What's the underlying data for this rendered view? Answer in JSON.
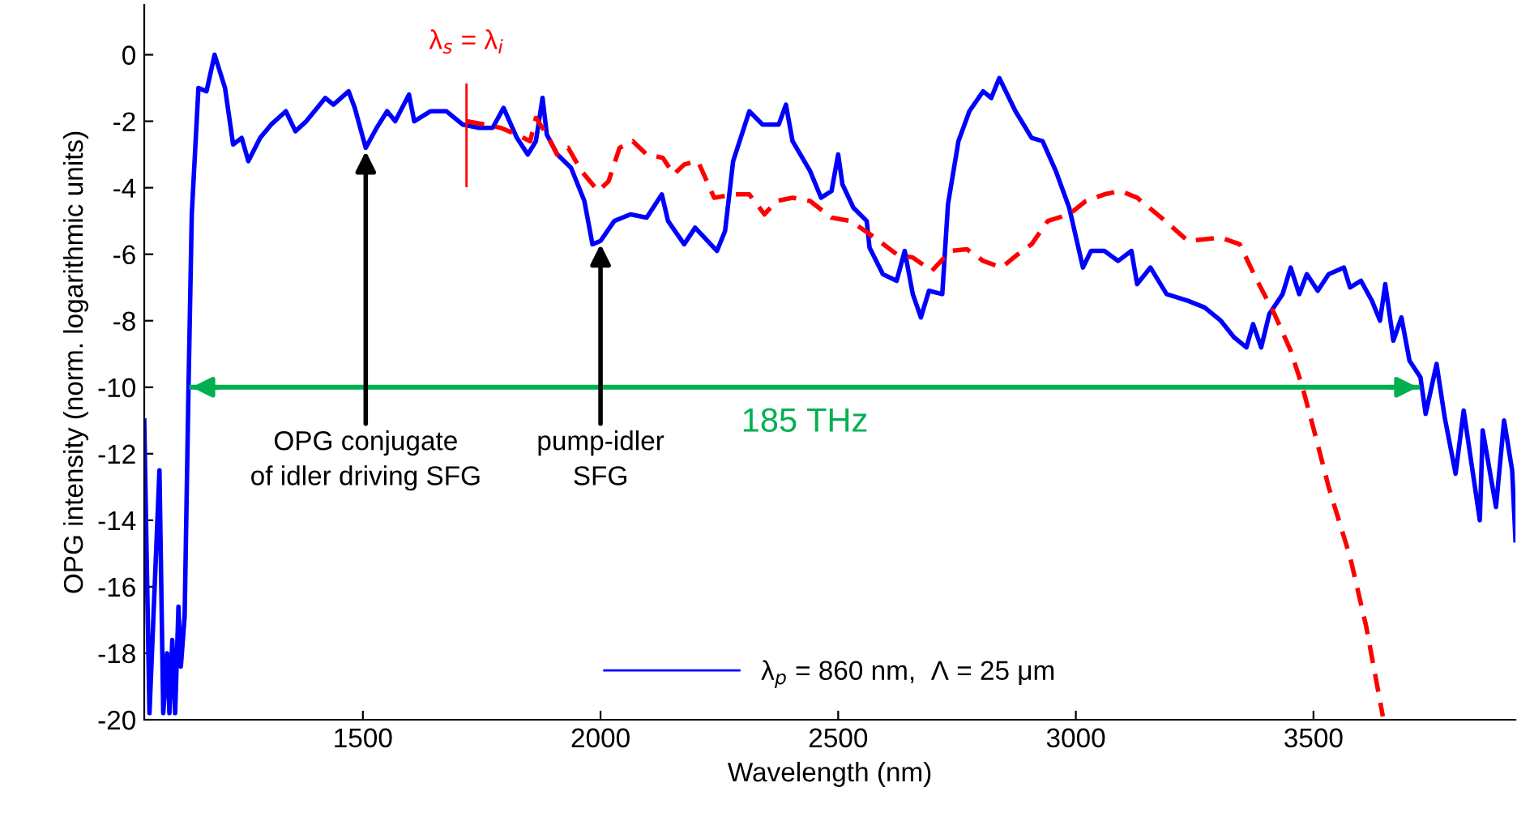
{
  "chart_data": {
    "type": "line",
    "xlabel": "Wavelength (nm)",
    "ylabel": "OPG intensity (norm. logarithmic units)",
    "xlim": [
      1040,
      3925
    ],
    "ylim": [
      -20,
      1.5
    ],
    "xticks": [
      1500,
      2000,
      2500,
      3000,
      3500
    ],
    "yticks": [
      0,
      -2,
      -4,
      -6,
      -8,
      -10,
      -12,
      -14,
      -16,
      -18,
      -20
    ],
    "grid": false,
    "legend": "bottom",
    "marker": "none",
    "series": [
      {
        "name": "λ$_{p}$ = 860 nm,  Λ = 25 μm",
        "color": "#0000ff",
        "line_style": "solid",
        "x": [
          1040,
          1051,
          1072,
          1080,
          1088,
          1093,
          1099,
          1105,
          1112,
          1117,
          1125,
          1133,
          1140,
          1154,
          1171,
          1188,
          1210,
          1227,
          1245,
          1259,
          1284,
          1307,
          1338,
          1358,
          1381,
          1421,
          1438,
          1470,
          1483,
          1506,
          1529,
          1551,
          1568,
          1597,
          1608,
          1642,
          1676,
          1710,
          1745,
          1773,
          1796,
          1824,
          1847,
          1864,
          1878,
          1887,
          1909,
          1938,
          1966,
          1983,
          2000,
          2029,
          2063,
          2097,
          2129,
          2142,
          2176,
          2199,
          2245,
          2262,
          2279,
          2313,
          2341,
          2375,
          2390,
          2404,
          2441,
          2464,
          2486,
          2500,
          2509,
          2532,
          2560,
          2566,
          2594,
          2623,
          2640,
          2657,
          2674,
          2691,
          2719,
          2731,
          2753,
          2776,
          2805,
          2822,
          2839,
          2873,
          2907,
          2930,
          2958,
          2986,
          3015,
          3032,
          3060,
          3089,
          3117,
          3129,
          3157,
          3191,
          3236,
          3271,
          3305,
          3333,
          3359,
          3373,
          3390,
          3407,
          3435,
          3452,
          3470,
          3486,
          3509,
          3532,
          3564,
          3577,
          3600,
          3623,
          3640,
          3651,
          3668,
          3685,
          3702,
          3725,
          3736,
          3759,
          3776,
          3799,
          3816,
          3850,
          3856,
          3884,
          3901,
          3918,
          3925
        ],
        "values": [
          -11.0,
          -19.8,
          -12.5,
          -19.8,
          -18.0,
          -19.8,
          -17.6,
          -19.8,
          -16.6,
          -18.4,
          -16.9,
          -10.1,
          -4.8,
          -1.0,
          -1.1,
          0,
          -1.0,
          -2.7,
          -2.5,
          -3.2,
          -2.5,
          -2.1,
          -1.7,
          -2.3,
          -2.0,
          -1.3,
          -1.5,
          -1.1,
          -1.6,
          -2.8,
          -2.2,
          -1.7,
          -2.0,
          -1.2,
          -2.0,
          -1.7,
          -1.7,
          -2.1,
          -2.2,
          -2.2,
          -1.6,
          -2.5,
          -3.0,
          -2.6,
          -1.3,
          -2.4,
          -3.0,
          -3.4,
          -4.4,
          -5.7,
          -5.6,
          -5.0,
          -4.8,
          -4.9,
          -4.2,
          -5.0,
          -5.7,
          -5.2,
          -5.9,
          -5.3,
          -3.2,
          -1.7,
          -2.1,
          -2.1,
          -1.5,
          -2.6,
          -3.5,
          -4.3,
          -4.1,
          -3.0,
          -3.9,
          -4.6,
          -5.0,
          -5.8,
          -6.6,
          -6.8,
          -5.9,
          -7.2,
          -7.9,
          -7.1,
          -7.2,
          -4.5,
          -2.6,
          -1.7,
          -1.1,
          -1.3,
          -0.7,
          -1.7,
          -2.5,
          -2.6,
          -3.5,
          -4.6,
          -6.4,
          -5.9,
          -5.9,
          -6.2,
          -5.9,
          -6.9,
          -6.4,
          -7.2,
          -7.4,
          -7.6,
          -8.0,
          -8.5,
          -8.8,
          -8.1,
          -8.8,
          -7.8,
          -7.2,
          -6.4,
          -7.2,
          -6.6,
          -7.1,
          -6.6,
          -6.4,
          -7.0,
          -6.8,
          -7.4,
          -8.0,
          -6.9,
          -8.6,
          -7.9,
          -9.2,
          -9.7,
          -10.8,
          -9.3,
          -10.9,
          -12.6,
          -10.7,
          -14.0,
          -11.3,
          -13.6,
          -11.0,
          -12.5,
          -14.6
        ]
      },
      {
        "color": "#ff0000",
        "line_style": "dashed",
        "x": [
          1718,
          1756,
          1790,
          1824,
          1852,
          1864,
          1887,
          1909,
          1932,
          1960,
          1995,
          2017,
          2040,
          2068,
          2097,
          2131,
          2154,
          2176,
          2205,
          2239,
          2279,
          2313,
          2345,
          2370,
          2404,
          2441,
          2486,
          2526,
          2577,
          2623,
          2657,
          2697,
          2736,
          2771,
          2805,
          2844,
          2878,
          2907,
          2941,
          2986,
          3021,
          3060,
          3094,
          3129,
          3180,
          3236,
          3305,
          3345,
          3378,
          3418,
          3452,
          3477,
          3503,
          3532,
          3549,
          3577,
          3611,
          3646
        ],
        "values": [
          -2.0,
          -2.1,
          -2.2,
          -2.4,
          -2.6,
          -1.9,
          -2.4,
          -3.0,
          -2.8,
          -3.5,
          -4.1,
          -3.8,
          -2.8,
          -2.6,
          -3.0,
          -3.1,
          -3.6,
          -3.3,
          -3.2,
          -4.3,
          -4.2,
          -4.2,
          -4.8,
          -4.4,
          -4.3,
          -4.4,
          -4.9,
          -5.0,
          -5.5,
          -6.0,
          -6.1,
          -6.5,
          -5.9,
          -5.85,
          -6.2,
          -6.4,
          -6.0,
          -5.7,
          -5.0,
          -4.8,
          -4.4,
          -4.2,
          -4.1,
          -4.3,
          -4.9,
          -5.6,
          -5.5,
          -5.7,
          -6.7,
          -7.8,
          -8.9,
          -10.0,
          -11.4,
          -13.0,
          -13.8,
          -15.1,
          -17.2,
          -19.9
        ]
      },
      {
        "color": "#ff0000",
        "line_style": "solid",
        "x": [
          1718,
          1718
        ],
        "values": [
          -0.9,
          -3.95
        ]
      },
      {
        "color": "#00b050",
        "line_style": "solid",
        "x": [
          1140,
          3719
        ],
        "values": [
          -10,
          -10
        ]
      }
    ],
    "annotations": [
      {
        "text": "λ$_{s}$ = λ$_{i}$",
        "x": 1718,
        "y": -0.9
      },
      {
        "text": "OPG conjugate\nof idler driving SFG",
        "x": 1506,
        "y": -2.9
      },
      {
        "text": "pump-idler\nSFG",
        "x": 2000,
        "y": -5.7
      },
      "185 THz"
    ]
  }
}
